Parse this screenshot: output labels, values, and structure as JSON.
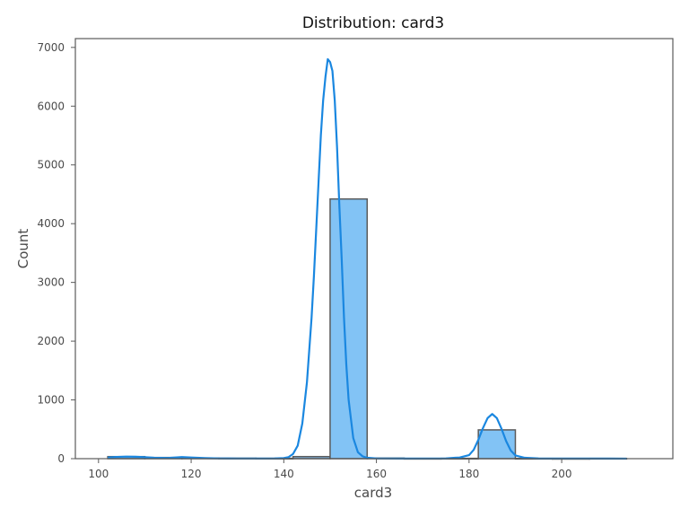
{
  "chart_data": {
    "type": "bar",
    "title": "Distribution: card3",
    "xlabel": "card3",
    "ylabel": "Count",
    "xlim": [
      95,
      224
    ],
    "ylim": [
      0,
      7150
    ],
    "xticks": [
      100,
      120,
      140,
      160,
      180,
      200
    ],
    "yticks": [
      0,
      1000,
      2000,
      3000,
      4000,
      5000,
      6000,
      7000
    ],
    "grid": false,
    "bin_edges": [
      102,
      110,
      118,
      126,
      134,
      142,
      150,
      158,
      166,
      174,
      182,
      190,
      198,
      206,
      214
    ],
    "values": [
      35,
      20,
      10,
      8,
      6,
      35,
      4420,
      10,
      3,
      5,
      490,
      4,
      2,
      4
    ],
    "kde": {
      "x": [
        102,
        104,
        106,
        108,
        110,
        112,
        115,
        118,
        120,
        123,
        126,
        130,
        135,
        138,
        140,
        141,
        142,
        143,
        144,
        145,
        146,
        146.5,
        147,
        147.5,
        148,
        148.5,
        149,
        149.5,
        150,
        150.5,
        151,
        151.5,
        152,
        152.5,
        153,
        153.5,
        154,
        155,
        156,
        157,
        158,
        160,
        165,
        170,
        175,
        178,
        180,
        181,
        182,
        183,
        184,
        185,
        186,
        187,
        188,
        189,
        190,
        192,
        195,
        200,
        205,
        210,
        214
      ],
      "y": [
        20,
        30,
        35,
        33,
        25,
        15,
        12,
        28,
        20,
        10,
        5,
        3,
        3,
        5,
        10,
        25,
        80,
        220,
        600,
        1300,
        2400,
        3100,
        3900,
        4700,
        5500,
        6100,
        6500,
        6800,
        6750,
        6600,
        6100,
        5300,
        4300,
        3400,
        2400,
        1600,
        1000,
        350,
        110,
        40,
        15,
        5,
        2,
        3,
        5,
        20,
        60,
        150,
        320,
        520,
        690,
        760,
        690,
        510,
        300,
        140,
        55,
        15,
        4,
        3,
        3,
        2,
        1
      ]
    },
    "colors": {
      "bar_fill": "#82c3f5",
      "bar_edge": "#5b5b5b",
      "kde_line": "#1a87e0",
      "frame": "#5a5a5a",
      "text": "#4a4a4a",
      "title": "#111111"
    }
  }
}
